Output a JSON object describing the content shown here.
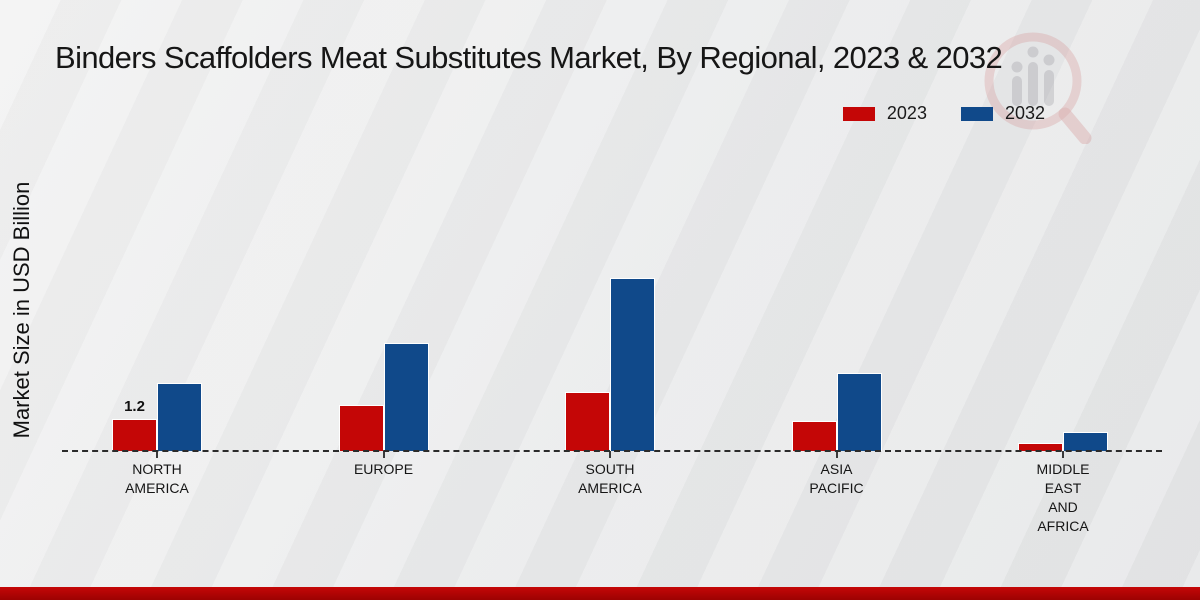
{
  "title": "Binders Scaffolders Meat Substitutes Market, By Regional, 2023 & 2032",
  "y_axis_label": "Market Size in USD Billion",
  "legend": [
    {
      "label": "2023",
      "color": "#c40606"
    },
    {
      "label": "2032",
      "color": "#10498a"
    }
  ],
  "colors": {
    "bar_2023": "#c40606",
    "bar_2032": "#10498a",
    "background": "#e8e9ea",
    "footer_bar": "#b20404",
    "baseline": "#2b2b2b",
    "watermark_ring": "#d89494",
    "watermark_bars": "#a9a9af"
  },
  "chart_data": {
    "type": "bar",
    "title": "Binders Scaffolders Meat Substitutes Market, By Regional, 2023 & 2032",
    "xlabel": "",
    "ylabel": "Market Size in USD Billion",
    "ylim": [
      0,
      7
    ],
    "grid": "off",
    "legend_position": "top-right",
    "categories": [
      "NORTH AMERICA",
      "EUROPE",
      "SOUTH AMERICA",
      "ASIA PACIFIC",
      "MIDDLE EAST AND AFRICA"
    ],
    "category_label_lines": [
      [
        "NORTH",
        "AMERICA"
      ],
      [
        "EUROPE"
      ],
      [
        "SOUTH",
        "AMERICA"
      ],
      [
        "ASIA",
        "PACIFIC"
      ],
      [
        "MIDDLE",
        "EAST",
        "AND",
        "AFRICA"
      ]
    ],
    "series": [
      {
        "name": "2023",
        "color": "#c40606",
        "values": [
          1.2,
          1.7,
          2.2,
          1.1,
          0.3
        ]
      },
      {
        "name": "2032",
        "color": "#10498a",
        "values": [
          2.5,
          4.0,
          6.4,
          2.9,
          0.7
        ]
      }
    ],
    "value_labels": [
      {
        "series": "2023",
        "category": "NORTH AMERICA",
        "text": "1.2"
      }
    ]
  }
}
